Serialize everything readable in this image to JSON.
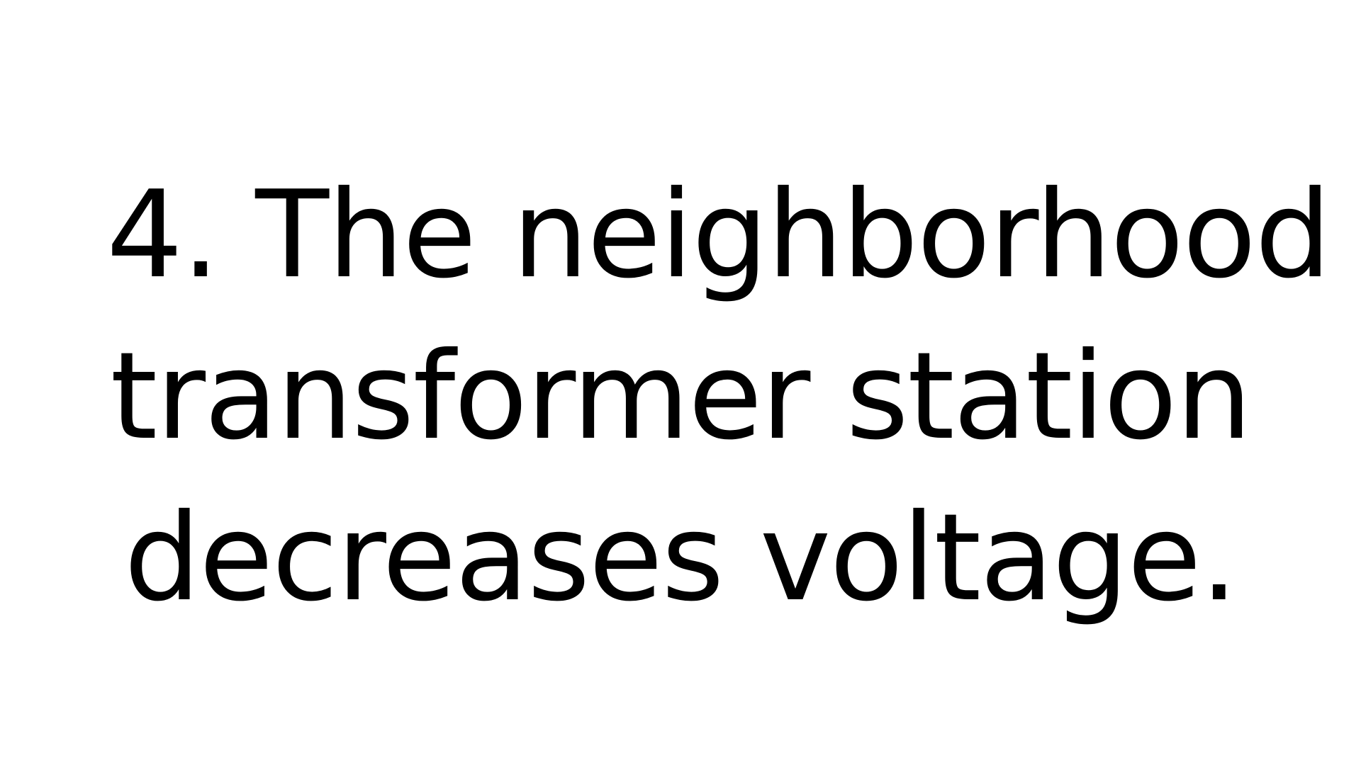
{
  "slide": {
    "lines": [
      "4. The neighborhood",
      "transformer station",
      "decreases voltage."
    ]
  }
}
